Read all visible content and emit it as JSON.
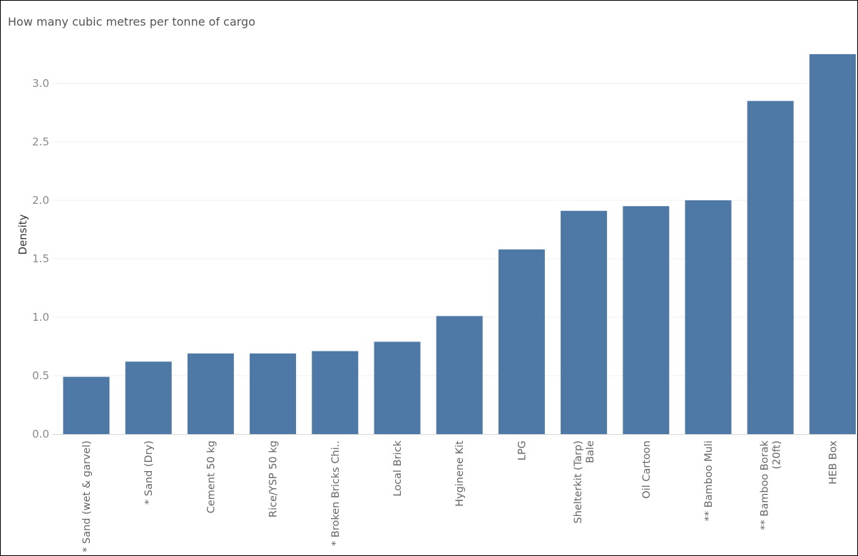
{
  "chart_data": {
    "type": "bar",
    "title": "How many cubic metres per tonne of cargo",
    "ylabel": "Density",
    "xlabel": "",
    "categories": [
      [
        "* Sand (wet & garvel)"
      ],
      [
        "* Sand (Dry)"
      ],
      [
        "Cement 50 kg"
      ],
      [
        "Rice/YSP 50 kg"
      ],
      [
        "* Broken Bricks Chi.."
      ],
      [
        "Local Brick"
      ],
      [
        "Hyginene Kit"
      ],
      [
        "LPG"
      ],
      [
        "Shelterkit (Tarp)",
        "Bale"
      ],
      [
        "Oil Cartoon"
      ],
      [
        "** Bamboo Muli"
      ],
      [
        "** Bamboo Borak",
        "(20ft)"
      ],
      [
        "HEB Box"
      ]
    ],
    "values": [
      0.49,
      0.62,
      0.69,
      0.69,
      0.71,
      0.79,
      1.01,
      1.58,
      1.91,
      1.95,
      2.0,
      2.85,
      3.25
    ],
    "yticks": [
      "0.0",
      "0.5",
      "1.0",
      "1.5",
      "2.0",
      "2.5",
      "3.0"
    ],
    "ylim": [
      0,
      3.4
    ],
    "grid": true,
    "bar_color": "#4e79a7"
  }
}
